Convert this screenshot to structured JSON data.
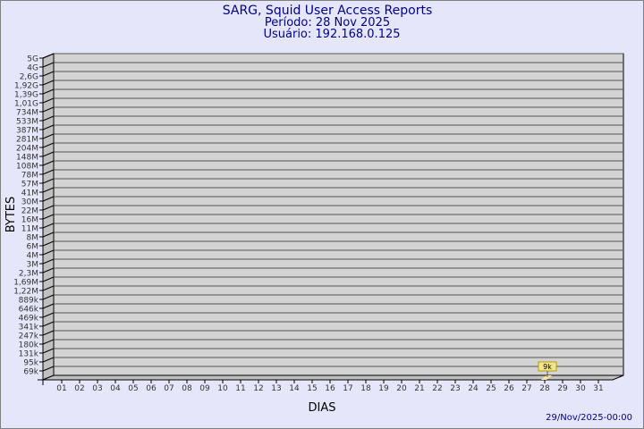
{
  "chart_data": {
    "type": "bar",
    "title": "SARG, Squid User Access Reports",
    "subtitle_period": "Período: 28 Nov 2025",
    "subtitle_user": "Usuário: 192.168.0.125",
    "xlabel": "DIAS",
    "ylabel": "BYTES",
    "y_scale": "log",
    "y_tick_labels": [
      "5G",
      "4G",
      "2,6G",
      "1,92G",
      "1,39G",
      "1,01G",
      "734M",
      "533M",
      "387M",
      "281M",
      "204M",
      "148M",
      "108M",
      "78M",
      "57M",
      "41M",
      "30M",
      "22M",
      "16M",
      "11M",
      "8M",
      "6M",
      "4M",
      "3M",
      "2,3M",
      "1,69M",
      "1,22M",
      "889k",
      "646k",
      "469k",
      "341k",
      "247k",
      "180k",
      "131k",
      "95k",
      "69k"
    ],
    "categories": [
      "01",
      "02",
      "03",
      "04",
      "05",
      "06",
      "07",
      "08",
      "09",
      "10",
      "11",
      "12",
      "13",
      "14",
      "15",
      "16",
      "17",
      "18",
      "19",
      "20",
      "21",
      "22",
      "23",
      "24",
      "25",
      "26",
      "27",
      "28",
      "29",
      "30",
      "31"
    ],
    "bars": [
      {
        "day": "28",
        "value_label": "9k"
      }
    ],
    "grid": true,
    "footer_timestamp": "29/Nov/2025-00:00",
    "colors": {
      "title": "#00008b",
      "background": "#e6e6fa",
      "plot": "#d3d3d3",
      "bar": "#ffe99a",
      "label_box": "#f0e68c"
    }
  }
}
